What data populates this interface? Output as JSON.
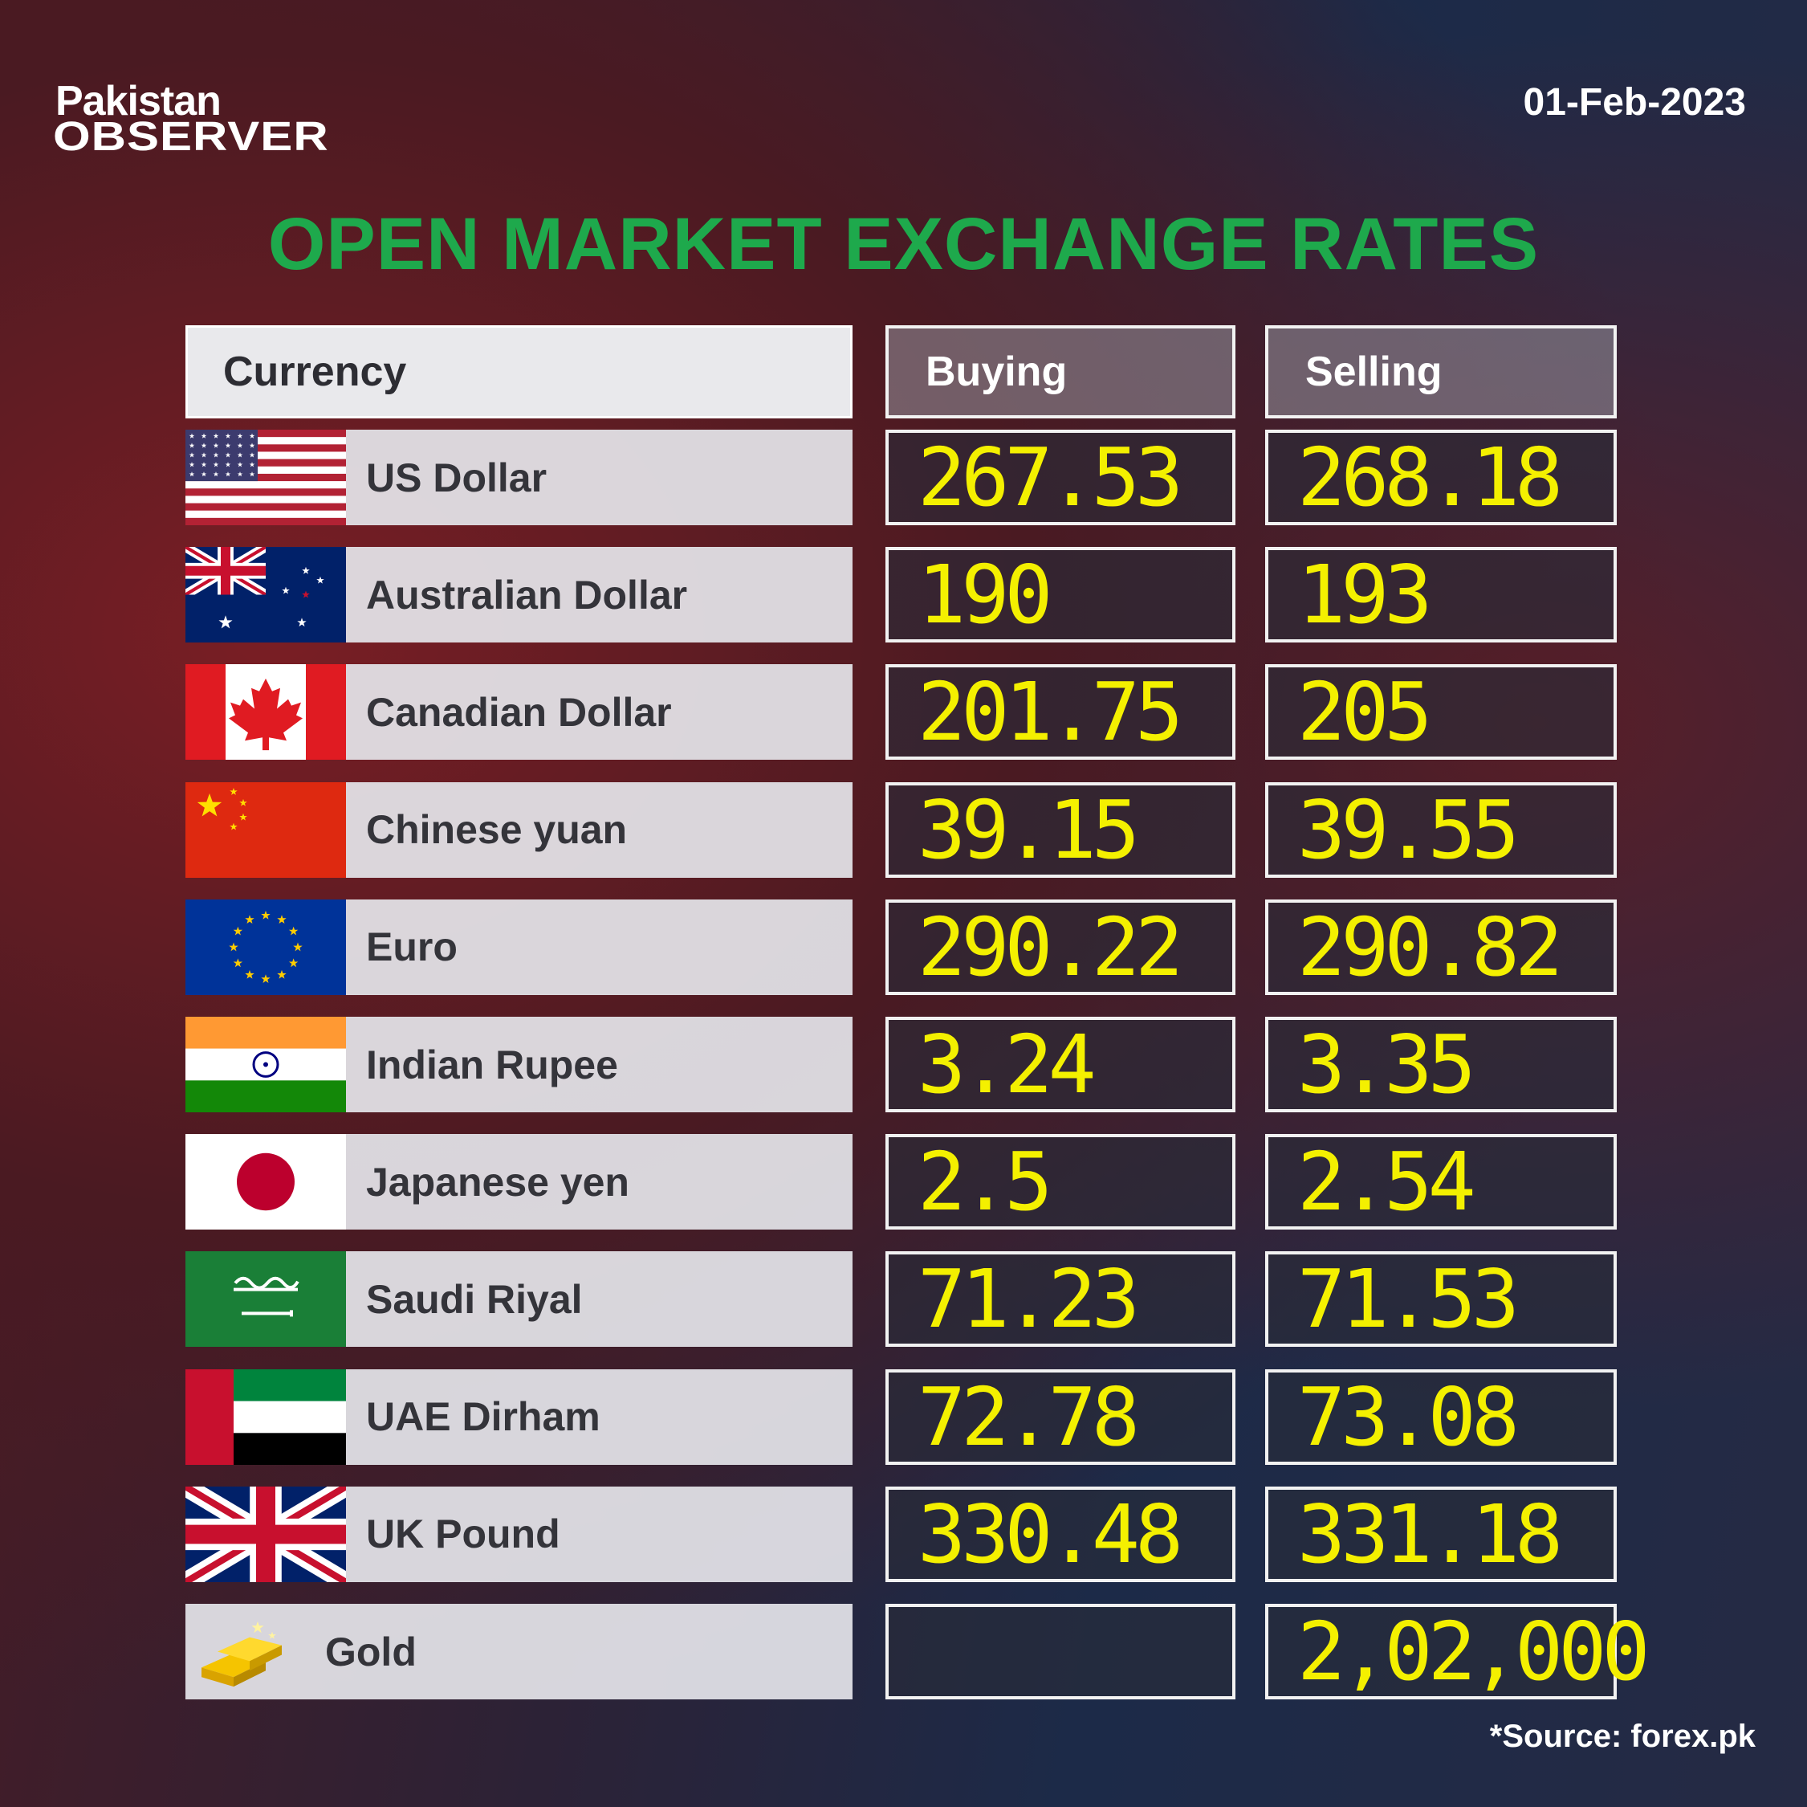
{
  "brand": {
    "line1": "Pakistan",
    "line2": "OBSERVER"
  },
  "date": "01-Feb-2023",
  "title": "OPEN MARKET EXCHANGE RATES",
  "table": {
    "columns": [
      "Currency",
      "Buying",
      "Selling"
    ],
    "rows": [
      {
        "name": "US Dollar",
        "buying": "267.53",
        "selling": "268.18"
      },
      {
        "name": "Australian Dollar",
        "buying": "190",
        "selling": "193"
      },
      {
        "name": "Canadian Dollar",
        "buying": "201.75",
        "selling": "205"
      },
      {
        "name": "Chinese yuan",
        "buying": "39.15",
        "selling": "39.55"
      },
      {
        "name": "Euro",
        "buying": "290.22",
        "selling": "290.82"
      },
      {
        "name": "Indian Rupee",
        "buying": "3.24",
        "selling": "3.35"
      },
      {
        "name": "Japanese yen",
        "buying": "2.5",
        "selling": "2.54"
      },
      {
        "name": "Saudi Riyal",
        "buying": "71.23",
        "selling": "71.53"
      },
      {
        "name": "UAE Dirham",
        "buying": "72.78",
        "selling": "73.08"
      },
      {
        "name": "UK Pound",
        "buying": "330.48",
        "selling": "331.18"
      },
      {
        "name": "Gold",
        "selling": "2,02,000"
      }
    ]
  },
  "source": "*Source: forex.pk"
}
